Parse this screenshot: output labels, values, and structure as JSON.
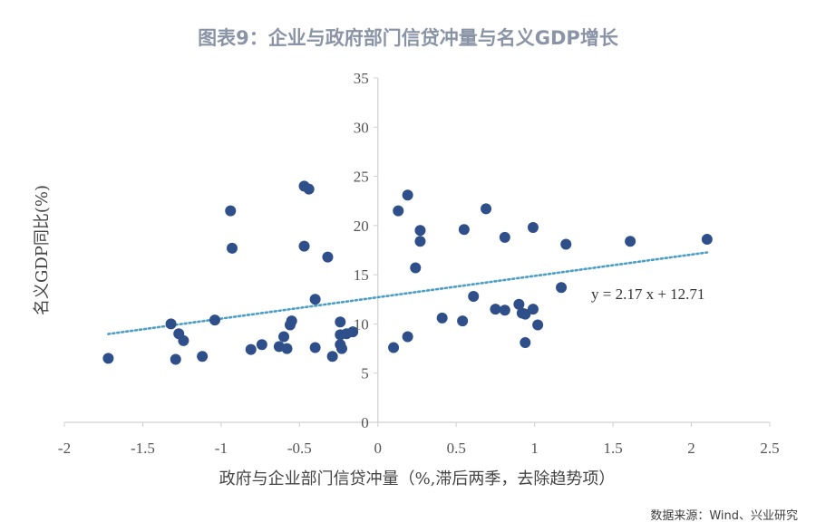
{
  "header": {
    "title": "图表9：企业与政府部门信贷冲量与名义GDP增长"
  },
  "footer": {
    "source": "数据来源：Wind、兴业研究"
  },
  "chart_data": {
    "type": "scatter",
    "title": "图表9：企业与政府部门信贷冲量与名义GDP增长",
    "xlabel": "政府与企业部门信贷冲量（%,滞后两季，去除趋势项）",
    "ylabel": "名义GDP同比(%)",
    "xlim": [
      -2,
      2.5
    ],
    "ylim": [
      0,
      35
    ],
    "x_ticks": [
      "-2",
      "-1.5",
      "-1",
      "-0.5",
      "0",
      "0.5",
      "1",
      "1.5",
      "2",
      "2.5"
    ],
    "y_ticks": [
      "0",
      "5",
      "10",
      "15",
      "20",
      "25",
      "30",
      "35"
    ],
    "grid": false,
    "point_color": "#2e4f8a",
    "trendline": {
      "slope": 2.17,
      "intercept": 12.71,
      "label": "y = 2.17 x + 12.71",
      "color": "#4b9ec6",
      "style": "dotted"
    },
    "points": [
      [
        -1.72,
        6.5
      ],
      [
        -1.32,
        10.0
      ],
      [
        -1.29,
        6.4
      ],
      [
        -1.27,
        9.0
      ],
      [
        -1.24,
        8.3
      ],
      [
        -1.12,
        6.7
      ],
      [
        -1.04,
        10.4
      ],
      [
        -0.94,
        21.5
      ],
      [
        -0.93,
        17.7
      ],
      [
        -0.81,
        7.4
      ],
      [
        -0.74,
        7.9
      ],
      [
        -0.63,
        7.7
      ],
      [
        -0.6,
        8.7
      ],
      [
        -0.58,
        7.5
      ],
      [
        -0.56,
        9.9
      ],
      [
        -0.55,
        10.3
      ],
      [
        -0.47,
        24.0
      ],
      [
        -0.47,
        17.9
      ],
      [
        -0.44,
        23.7
      ],
      [
        -0.4,
        12.5
      ],
      [
        -0.4,
        7.6
      ],
      [
        -0.32,
        16.8
      ],
      [
        -0.29,
        6.7
      ],
      [
        -0.24,
        10.2
      ],
      [
        -0.24,
        8.9
      ],
      [
        -0.24,
        7.9
      ],
      [
        -0.23,
        7.5
      ],
      [
        -0.2,
        9.0
      ],
      [
        -0.16,
        9.2
      ],
      [
        0.1,
        7.6
      ],
      [
        0.13,
        21.5
      ],
      [
        0.19,
        8.7
      ],
      [
        0.19,
        23.1
      ],
      [
        0.24,
        15.7
      ],
      [
        0.27,
        19.5
      ],
      [
        0.27,
        18.4
      ],
      [
        0.41,
        10.6
      ],
      [
        0.54,
        10.3
      ],
      [
        0.55,
        19.6
      ],
      [
        0.61,
        12.8
      ],
      [
        0.69,
        21.7
      ],
      [
        0.75,
        11.5
      ],
      [
        0.81,
        18.8
      ],
      [
        0.81,
        11.4
      ],
      [
        0.9,
        12.0
      ],
      [
        0.92,
        11.1
      ],
      [
        0.94,
        11.0
      ],
      [
        0.94,
        8.1
      ],
      [
        0.99,
        19.8
      ],
      [
        0.99,
        11.5
      ],
      [
        1.02,
        9.9
      ],
      [
        1.17,
        13.7
      ],
      [
        1.2,
        18.1
      ],
      [
        1.61,
        18.4
      ],
      [
        2.1,
        18.6
      ]
    ]
  }
}
